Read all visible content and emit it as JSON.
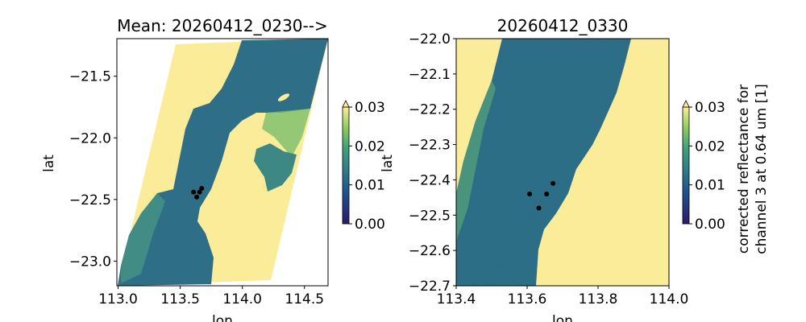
{
  "chart_data": [
    {
      "type": "heatmap",
      "title": "Mean: 20260412_0230-->",
      "xlabel": "lon",
      "ylabel": "lat",
      "xlim": [
        112.99,
        114.69
      ],
      "ylim": [
        -23.2,
        -21.195
      ],
      "xticks": [
        113.0,
        113.5,
        114.0,
        114.5
      ],
      "xtick_labels": [
        "113.0",
        "113.5",
        "114.0",
        "114.5"
      ],
      "yticks": [
        -21.5,
        -22.0,
        -22.5,
        -23.0
      ],
      "ytick_labels": [
        "−21.5",
        "−22.0",
        "−22.5",
        "−23.0"
      ],
      "points": [
        {
          "lon": 113.607,
          "lat": -22.44
        },
        {
          "lon": 113.655,
          "lat": -22.44
        },
        {
          "lon": 113.633,
          "lat": -22.48
        },
        {
          "lon": 113.673,
          "lat": -22.41
        }
      ],
      "colorbar": {
        "range": [
          0.0,
          0.03
        ],
        "extend": "max",
        "ticks": [
          0.0,
          0.01,
          0.02,
          0.03
        ],
        "tick_labels": [
          "0.00",
          "0.01",
          "0.02",
          "0.03"
        ],
        "label": ""
      },
      "colormap_stops": [
        "#2a1a6e",
        "#1b4f8f",
        "#2d7a8a",
        "#3da37a",
        "#8ccc5c",
        "#fbec99"
      ],
      "land_color": "#fbec99",
      "water_color": "#2d6f88"
    },
    {
      "type": "heatmap",
      "title": "20260412_0330",
      "xlabel": "lon",
      "ylabel": "lat",
      "xlim": [
        113.4,
        114.0
      ],
      "ylim": [
        -22.7,
        -22.0
      ],
      "xticks": [
        113.4,
        113.6,
        113.8,
        114.0
      ],
      "xtick_labels": [
        "113.4",
        "113.6",
        "113.8",
        "114.0"
      ],
      "yticks": [
        -22.0,
        -22.1,
        -22.2,
        -22.3,
        -22.4,
        -22.5,
        -22.6,
        -22.7
      ],
      "ytick_labels": [
        "−22.0",
        "−22.1",
        "−22.2",
        "−22.3",
        "−22.4",
        "−22.5",
        "−22.6",
        "−22.7"
      ],
      "points": [
        {
          "lon": 113.607,
          "lat": -22.44
        },
        {
          "lon": 113.655,
          "lat": -22.44
        },
        {
          "lon": 113.633,
          "lat": -22.48
        },
        {
          "lon": 113.673,
          "lat": -22.41
        }
      ],
      "colorbar": {
        "range": [
          0.0,
          0.03
        ],
        "extend": "max",
        "ticks": [
          0.0,
          0.01,
          0.02,
          0.03
        ],
        "tick_labels": [
          "0.00",
          "0.01",
          "0.02",
          "0.03"
        ],
        "label": [
          "corrected reflectance for",
          "channel 3 at 0.64 um [1]"
        ]
      },
      "land_color": "#fbec99",
      "water_color": "#2d6f88"
    }
  ]
}
